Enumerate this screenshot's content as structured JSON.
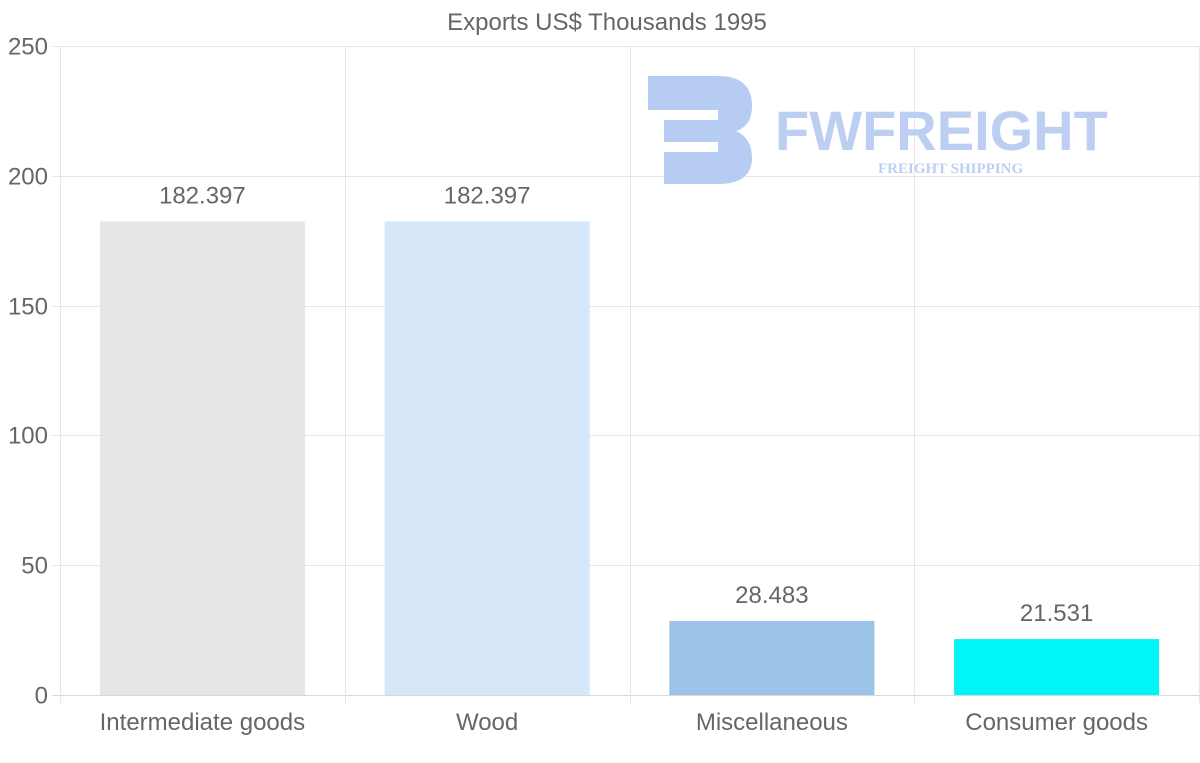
{
  "chart_data": {
    "type": "bar",
    "title": "Exports US$ Thousands 1995",
    "categories": [
      "Intermediate goods",
      "Wood",
      "Miscellaneous",
      "Consumer goods"
    ],
    "values": [
      182.397,
      182.397,
      28.483,
      21.531
    ],
    "value_labels": [
      "182.397",
      "182.397",
      "28.483",
      "21.531"
    ],
    "bar_colors": [
      "#e6e6e6",
      "#d6e7f9",
      "#9ac3e7",
      "#00f5f7"
    ],
    "ylim": [
      0,
      250
    ],
    "yticks": [
      0,
      50,
      100,
      150,
      200,
      250
    ],
    "xlabel": "",
    "ylabel": "",
    "grid": true,
    "legend": "none"
  },
  "watermark": {
    "brand": "FWFREIGHT",
    "tagline": "FREIGHT SHIPPING",
    "color": "#b9cdf2"
  }
}
